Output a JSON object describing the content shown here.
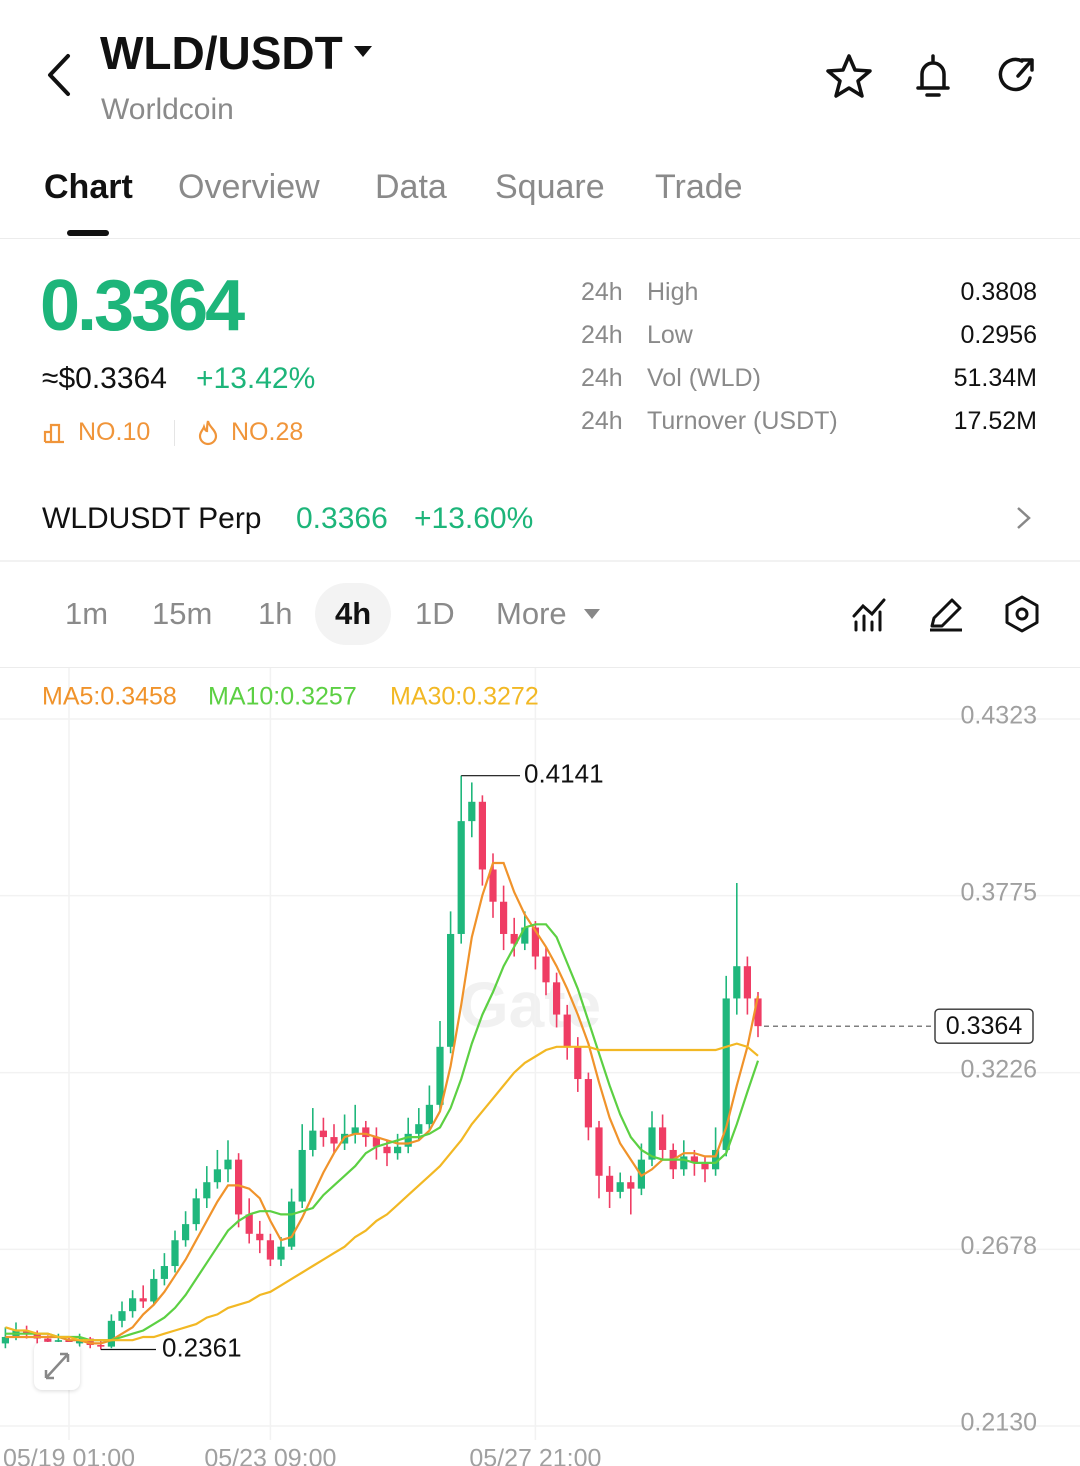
{
  "header": {
    "symbol": "WLD/USDT",
    "name": "Worldcoin"
  },
  "tabs": [
    "Chart",
    "Overview",
    "Data",
    "Square",
    "Trade"
  ],
  "ticker": {
    "price": "0.3364",
    "usd_price": "≈$0.3364",
    "change": "+13.42%",
    "rank": "NO.10",
    "hot_rank": "NO.28"
  },
  "stats": [
    {
      "period": "24h",
      "label": "High",
      "value": "0.3808"
    },
    {
      "period": "24h",
      "label": "Low",
      "value": "0.2956"
    },
    {
      "period": "24h",
      "label": "Vol (WLD)",
      "value": "51.34M"
    },
    {
      "period": "24h",
      "label": "Turnover (USDT)",
      "value": "17.52M"
    }
  ],
  "perp": {
    "name": "WLDUSDT Perp",
    "price": "0.3366",
    "change": "+13.60%"
  },
  "timeframes": [
    "1m",
    "15m",
    "1h",
    "4h",
    "1D",
    "More"
  ],
  "chart_data": {
    "type": "candlestick",
    "watermark": "Gate",
    "up_color": "#1fb77c",
    "down_color": "#ef3d64",
    "ylim": [
      0.213,
      0.4323
    ],
    "yticks": [
      0.4323,
      0.3775,
      0.3226,
      0.2678,
      {
        "value": 0.213,
        "label": "0.2130"
      }
    ],
    "grid": true,
    "categories": [
      null,
      null,
      null,
      null,
      null,
      null,
      "05/19 01:00",
      null,
      null,
      null,
      null,
      null,
      null,
      null,
      null,
      null,
      null,
      null,
      null,
      null,
      null,
      null,
      null,
      null,
      null,
      "05/23 09:00",
      null,
      null,
      null,
      null,
      null,
      null,
      null,
      null,
      null,
      null,
      null,
      null,
      null,
      null,
      null,
      null,
      null,
      null,
      null,
      null,
      null,
      null,
      null,
      null,
      "05/27 21:00",
      null,
      null,
      null,
      null,
      null,
      null,
      null,
      null,
      null,
      null,
      null,
      null,
      null,
      null,
      null,
      null,
      null,
      null,
      null,
      null,
      null
    ],
    "ohlc": [
      [
        0.238,
        0.243,
        0.2365,
        0.24
      ],
      [
        0.24,
        0.2445,
        0.239,
        0.242
      ],
      [
        0.242,
        0.2435,
        0.2395,
        0.241
      ],
      [
        0.241,
        0.242,
        0.238,
        0.2395
      ],
      [
        0.2395,
        0.2405,
        0.237,
        0.2385
      ],
      [
        0.2385,
        0.241,
        0.2375,
        0.239
      ],
      [
        0.239,
        0.24,
        0.2365,
        0.238
      ],
      [
        0.238,
        0.241,
        0.237,
        0.2395
      ],
      [
        0.2395,
        0.24,
        0.2365,
        0.2375
      ],
      [
        0.2375,
        0.239,
        0.2361,
        0.237
      ],
      [
        0.237,
        0.247,
        0.2365,
        0.245
      ],
      [
        0.245,
        0.251,
        0.243,
        0.248
      ],
      [
        0.248,
        0.2545,
        0.246,
        0.252
      ],
      [
        0.252,
        0.256,
        0.249,
        0.251
      ],
      [
        0.251,
        0.261,
        0.25,
        0.258
      ],
      [
        0.258,
        0.266,
        0.256,
        0.262
      ],
      [
        0.262,
        0.273,
        0.26,
        0.27
      ],
      [
        0.27,
        0.279,
        0.268,
        0.275
      ],
      [
        0.275,
        0.286,
        0.273,
        0.283
      ],
      [
        0.283,
        0.293,
        0.28,
        0.288
      ],
      [
        0.288,
        0.298,
        0.286,
        0.292
      ],
      [
        0.292,
        0.301,
        0.288,
        0.295
      ],
      [
        0.295,
        0.297,
        0.274,
        0.278
      ],
      [
        0.278,
        0.283,
        0.269,
        0.272
      ],
      [
        0.272,
        0.276,
        0.266,
        0.27
      ],
      [
        0.27,
        0.272,
        0.262,
        0.264
      ],
      [
        0.264,
        0.271,
        0.262,
        0.268
      ],
      [
        0.268,
        0.286,
        0.267,
        0.282
      ],
      [
        0.282,
        0.306,
        0.28,
        0.298
      ],
      [
        0.298,
        0.311,
        0.296,
        0.304
      ],
      [
        0.304,
        0.308,
        0.299,
        0.302
      ],
      [
        0.302,
        0.306,
        0.297,
        0.3
      ],
      [
        0.3,
        0.309,
        0.298,
        0.303
      ],
      [
        0.303,
        0.312,
        0.3,
        0.305
      ],
      [
        0.305,
        0.307,
        0.299,
        0.302
      ],
      [
        0.302,
        0.305,
        0.295,
        0.299
      ],
      [
        0.299,
        0.301,
        0.293,
        0.297
      ],
      [
        0.297,
        0.303,
        0.295,
        0.299
      ],
      [
        0.299,
        0.308,
        0.297,
        0.303
      ],
      [
        0.303,
        0.311,
        0.301,
        0.306
      ],
      [
        0.306,
        0.318,
        0.304,
        0.312
      ],
      [
        0.312,
        0.338,
        0.31,
        0.33
      ],
      [
        0.33,
        0.372,
        0.328,
        0.365
      ],
      [
        0.365,
        0.4141,
        0.362,
        0.4
      ],
      [
        0.4,
        0.412,
        0.395,
        0.406
      ],
      [
        0.406,
        0.408,
        0.38,
        0.385
      ],
      [
        0.385,
        0.39,
        0.37,
        0.375
      ],
      [
        0.375,
        0.38,
        0.36,
        0.365
      ],
      [
        0.365,
        0.37,
        0.358,
        0.362
      ],
      [
        0.362,
        0.372,
        0.36,
        0.367
      ],
      [
        0.367,
        0.369,
        0.354,
        0.358
      ],
      [
        0.358,
        0.361,
        0.346,
        0.35
      ],
      [
        0.35,
        0.353,
        0.336,
        0.34
      ],
      [
        0.34,
        0.343,
        0.326,
        0.33
      ],
      [
        0.33,
        0.333,
        0.316,
        0.32
      ],
      [
        0.32,
        0.322,
        0.301,
        0.305
      ],
      [
        0.305,
        0.307,
        0.283,
        0.29
      ],
      [
        0.29,
        0.293,
        0.28,
        0.285
      ],
      [
        0.285,
        0.291,
        0.283,
        0.288
      ],
      [
        0.288,
        0.29,
        0.278,
        0.286
      ],
      [
        0.286,
        0.3,
        0.284,
        0.295
      ],
      [
        0.295,
        0.31,
        0.293,
        0.305
      ],
      [
        0.305,
        0.309,
        0.295,
        0.298
      ],
      [
        0.298,
        0.3,
        0.289,
        0.292
      ],
      [
        0.292,
        0.301,
        0.29,
        0.296
      ],
      [
        0.296,
        0.298,
        0.29,
        0.294
      ],
      [
        0.294,
        0.296,
        0.288,
        0.292
      ],
      [
        0.292,
        0.305,
        0.29,
        0.298
      ],
      [
        0.298,
        0.352,
        0.296,
        0.345
      ],
      [
        0.345,
        0.3808,
        0.34,
        0.355
      ],
      [
        0.355,
        0.358,
        0.34,
        0.345
      ],
      [
        0.345,
        0.347,
        0.333,
        0.3364
      ]
    ],
    "series": [
      {
        "name": "MA5:0.3458",
        "color": "#f0932b",
        "values": [
          0.24,
          0.24,
          0.24,
          0.24,
          0.24,
          0.24,
          0.239,
          0.239,
          0.238,
          0.238,
          0.239,
          0.241,
          0.243,
          0.247,
          0.25,
          0.254,
          0.259,
          0.264,
          0.27,
          0.276,
          0.282,
          0.287,
          0.287,
          0.286,
          0.283,
          0.276,
          0.27,
          0.271,
          0.277,
          0.284,
          0.291,
          0.297,
          0.302,
          0.303,
          0.303,
          0.302,
          0.301,
          0.3,
          0.3,
          0.301,
          0.304,
          0.31,
          0.324,
          0.343,
          0.364,
          0.377,
          0.387,
          0.387,
          0.378,
          0.371,
          0.366,
          0.361,
          0.355,
          0.348,
          0.34,
          0.331,
          0.319,
          0.308,
          0.3,
          0.295,
          0.29,
          0.292,
          0.295,
          0.295,
          0.297,
          0.297,
          0.296,
          0.296,
          0.305,
          0.318,
          0.33,
          0.3458
        ]
      },
      {
        "name": "MA10:0.3257",
        "color": "#5cd043",
        "values": [
          0.241,
          0.241,
          0.241,
          0.241,
          0.241,
          0.24,
          0.24,
          0.24,
          0.239,
          0.239,
          0.239,
          0.24,
          0.241,
          0.242,
          0.244,
          0.246,
          0.249,
          0.253,
          0.258,
          0.263,
          0.268,
          0.273,
          0.276,
          0.278,
          0.279,
          0.279,
          0.278,
          0.278,
          0.279,
          0.28,
          0.284,
          0.287,
          0.29,
          0.293,
          0.297,
          0.299,
          0.3,
          0.301,
          0.302,
          0.302,
          0.303,
          0.305,
          0.311,
          0.32,
          0.331,
          0.34,
          0.347,
          0.355,
          0.361,
          0.367,
          0.368,
          0.368,
          0.364,
          0.356,
          0.348,
          0.338,
          0.328,
          0.318,
          0.309,
          0.302,
          0.298,
          0.296,
          0.295,
          0.295,
          0.295,
          0.294,
          0.294,
          0.294,
          0.297,
          0.306,
          0.316,
          0.3257
        ]
      },
      {
        "name": "MA30:0.3272",
        "color": "#f2b824",
        "values": [
          0.243,
          0.242,
          0.242,
          0.241,
          0.241,
          0.24,
          0.24,
          0.239,
          0.239,
          0.239,
          0.239,
          0.239,
          0.239,
          0.24,
          0.24,
          0.241,
          0.242,
          0.243,
          0.244,
          0.246,
          0.247,
          0.249,
          0.25,
          0.251,
          0.253,
          0.254,
          0.256,
          0.258,
          0.26,
          0.262,
          0.264,
          0.266,
          0.268,
          0.271,
          0.273,
          0.276,
          0.278,
          0.281,
          0.284,
          0.287,
          0.29,
          0.293,
          0.297,
          0.301,
          0.306,
          0.31,
          0.314,
          0.318,
          0.322,
          0.325,
          0.327,
          0.329,
          0.33,
          0.33,
          0.33,
          0.33,
          0.329,
          0.329,
          0.329,
          0.329,
          0.329,
          0.329,
          0.329,
          0.329,
          0.329,
          0.329,
          0.329,
          0.329,
          0.33,
          0.331,
          0.33,
          0.3272
        ]
      }
    ]
  }
}
